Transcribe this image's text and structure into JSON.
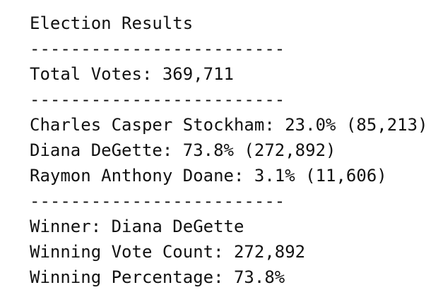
{
  "report": {
    "title": "Election Results",
    "separator_1": "-------------------------",
    "total_votes": "Total Votes: 369,711",
    "separator_2": "-------------------------",
    "candidates": [
      {
        "line": "Charles Casper Stockham: 23.0% (85,213)"
      },
      {
        "line": "Diana DeGette: 73.8% (272,892)"
      },
      {
        "line": "Raymon Anthony Doane: 3.1% (11,606)"
      }
    ],
    "separator_3": "-------------------------",
    "winner": "Winner: Diana DeGette",
    "winning_vote_count": "Winning Vote Count: 272,892",
    "winning_percentage": "Winning Percentage: 73.8%"
  }
}
